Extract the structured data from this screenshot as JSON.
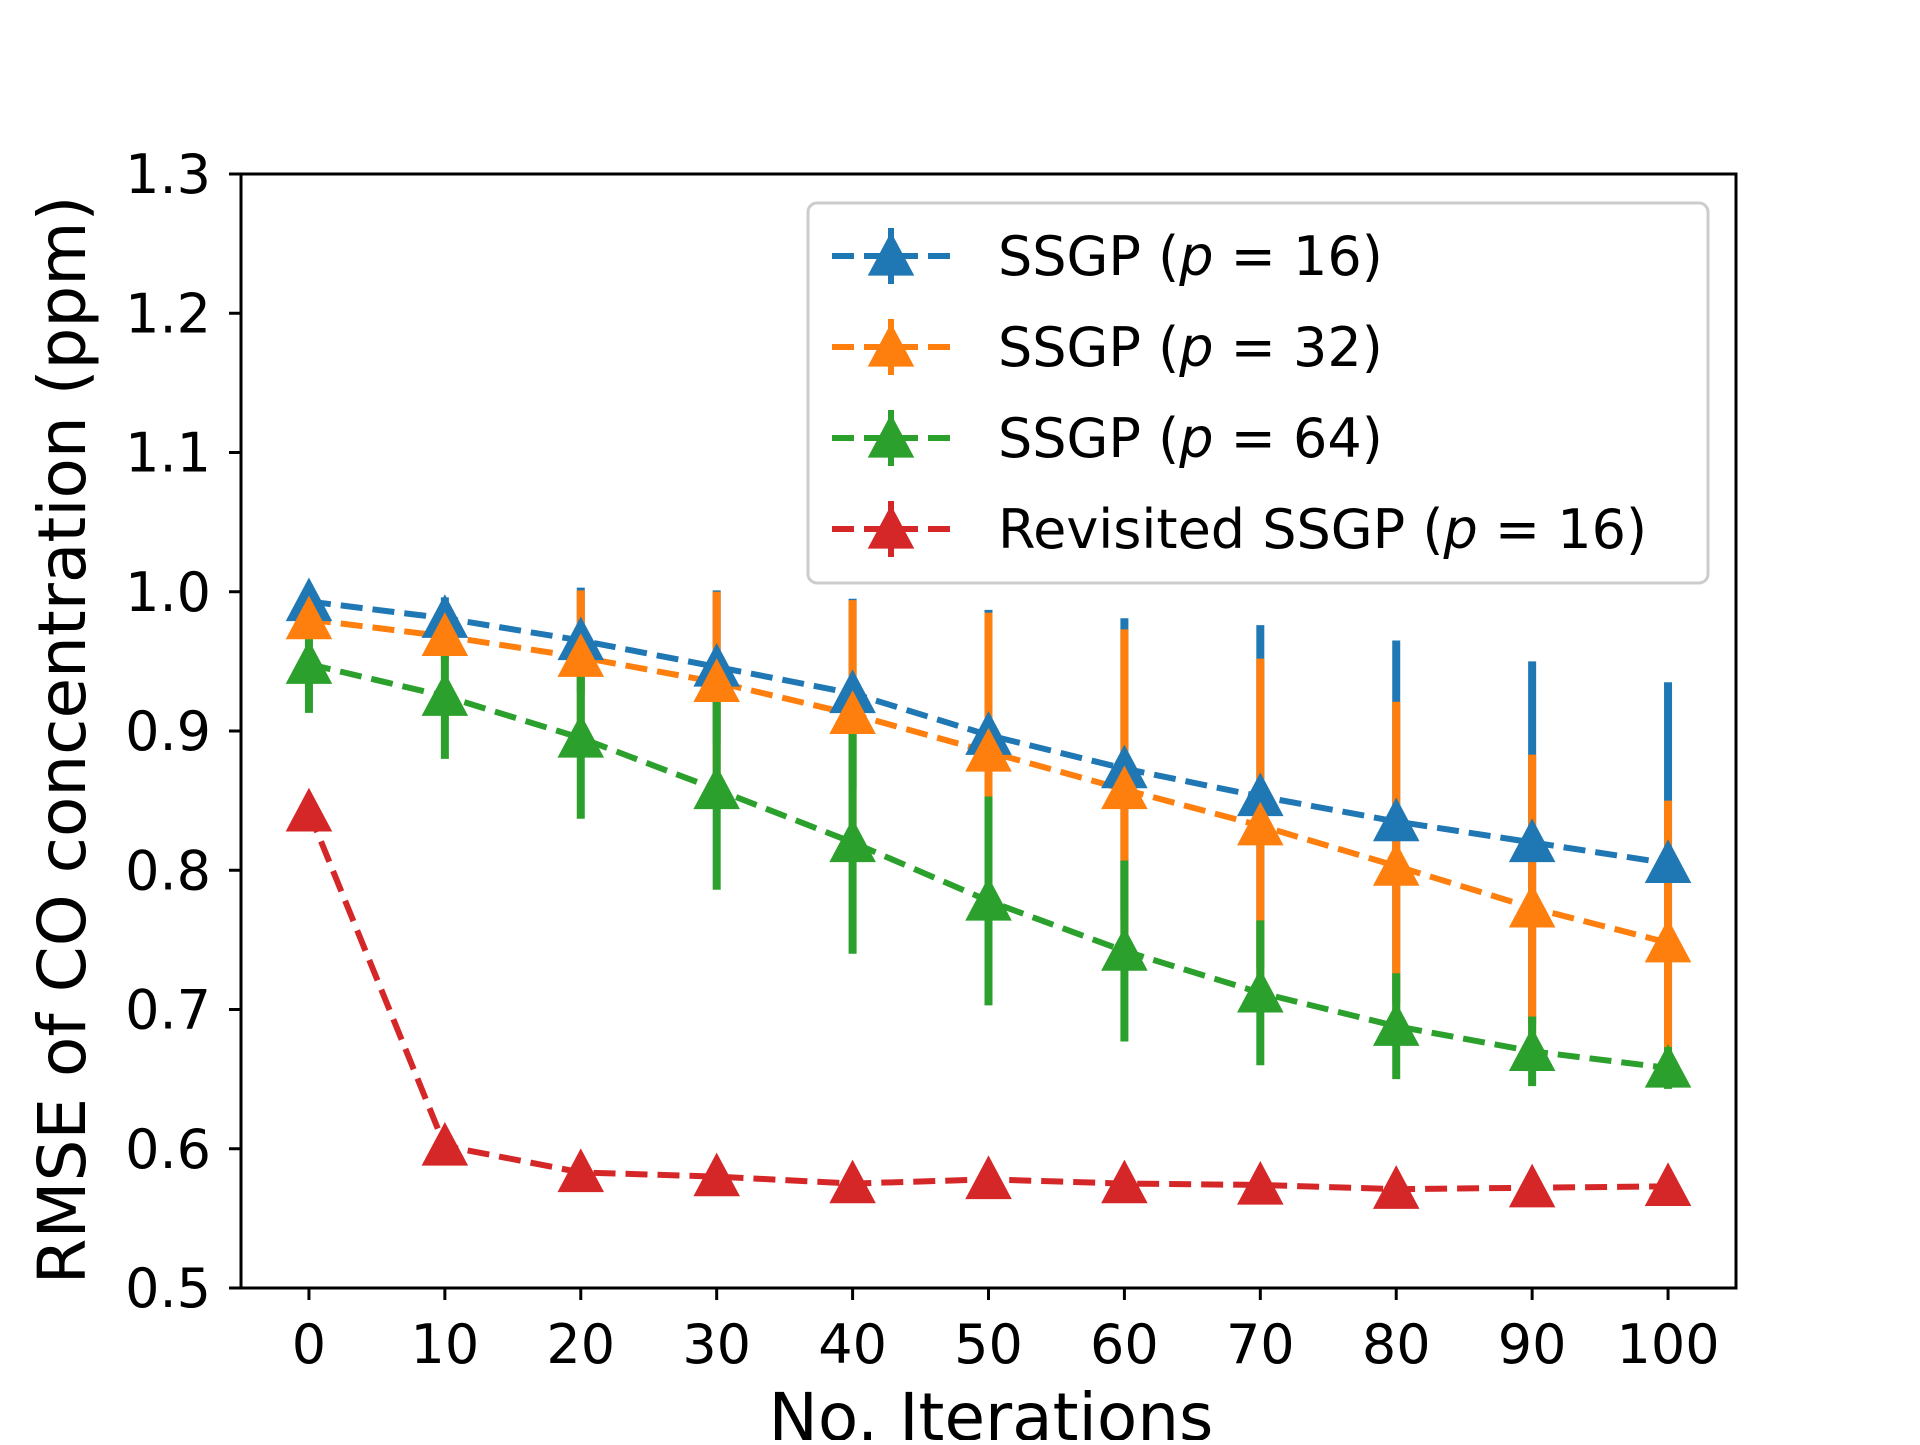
{
  "chart_data": {
    "type": "line",
    "title": "",
    "xlabel": "No. Iterations",
    "ylabel": "RMSE of CO concentration (ppm)",
    "x": [
      0,
      10,
      20,
      30,
      40,
      50,
      60,
      70,
      80,
      90,
      100
    ],
    "xlim": [
      -5,
      105
    ],
    "ylim": [
      0.5,
      1.3
    ],
    "x_ticks": [
      "0",
      "10",
      "20",
      "30",
      "40",
      "50",
      "60",
      "70",
      "80",
      "90",
      "100"
    ],
    "y_ticks": [
      "0.5",
      "0.6",
      "0.7",
      "0.8",
      "0.9",
      "1.0",
      "1.1",
      "1.2",
      "1.3"
    ],
    "grid": false,
    "legend_position": "top-right",
    "series": [
      {
        "name": "SSGP (p = 16)",
        "name_main": "SSGP (",
        "name_var": "p",
        "name_rest": " = 16)",
        "color": "#1f77b4",
        "values": [
          0.993,
          0.981,
          0.965,
          0.946,
          0.927,
          0.897,
          0.873,
          0.853,
          0.835,
          0.82,
          0.805
        ],
        "errors": [
          0.006,
          0.015,
          0.038,
          0.055,
          0.068,
          0.09,
          0.108,
          0.123,
          0.13,
          0.13,
          0.13
        ]
      },
      {
        "name": "SSGP (p = 32)",
        "name_main": "SSGP (",
        "name_var": "p",
        "name_rest": " = 32)",
        "color": "#ff7f0e",
        "values": [
          0.98,
          0.968,
          0.953,
          0.935,
          0.912,
          0.885,
          0.858,
          0.832,
          0.803,
          0.773,
          0.748
        ],
        "errors": [
          0.004,
          0.018,
          0.048,
          0.065,
          0.082,
          0.1,
          0.115,
          0.12,
          0.118,
          0.11,
          0.102
        ]
      },
      {
        "name": "SSGP (p = 64)",
        "name_main": "SSGP (",
        "name_var": "p",
        "name_rest": " = 64)",
        "color": "#2ca02c",
        "values": [
          0.948,
          0.925,
          0.895,
          0.858,
          0.82,
          0.778,
          0.742,
          0.712,
          0.688,
          0.67,
          0.658
        ],
        "errors": [
          0.035,
          0.045,
          0.058,
          0.072,
          0.08,
          0.075,
          0.065,
          0.052,
          0.038,
          0.025,
          0.015
        ]
      },
      {
        "name": "Revisited SSGP (p = 16)",
        "name_main": "Revisited SSGP (",
        "name_var": "p",
        "name_rest": " = 16)",
        "color": "#d62728",
        "values": [
          0.842,
          0.602,
          0.583,
          0.58,
          0.575,
          0.578,
          0.575,
          0.574,
          0.571,
          0.572,
          0.573
        ],
        "errors": [
          0.004,
          0.003,
          0.002,
          0.002,
          0.002,
          0.002,
          0.002,
          0.002,
          0.002,
          0.002,
          0.002
        ]
      }
    ]
  }
}
